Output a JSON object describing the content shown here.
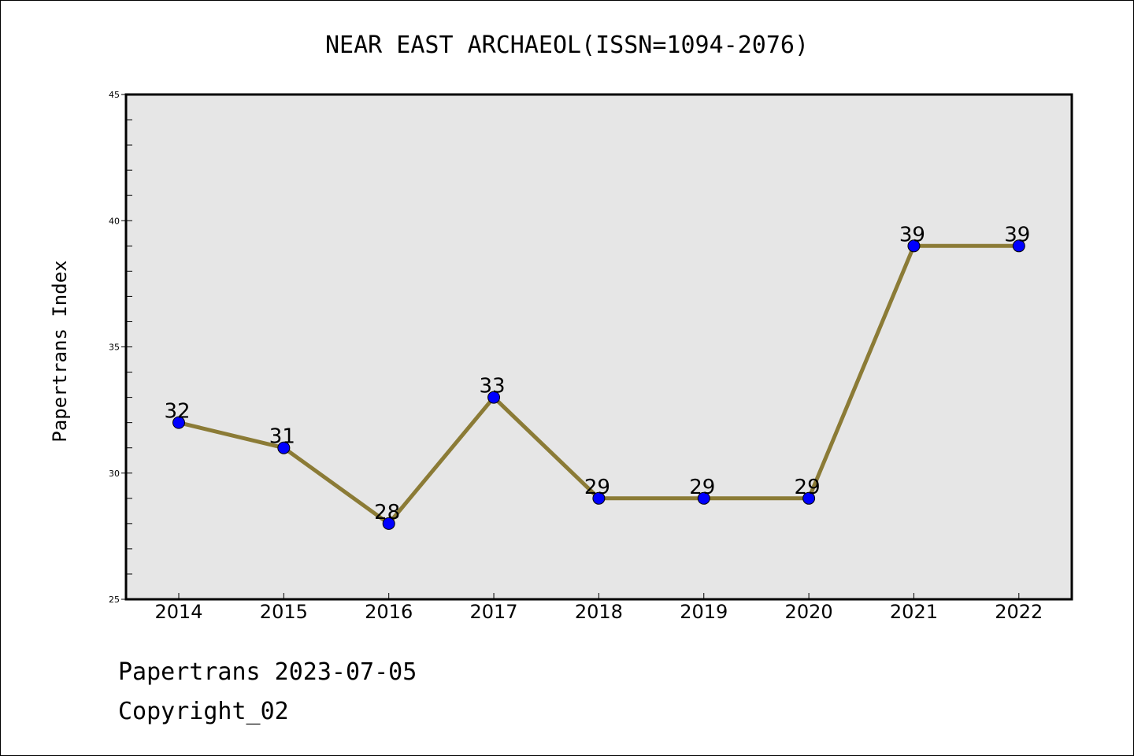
{
  "chart_data": {
    "type": "line",
    "title": "NEAR EAST ARCHAEOL(ISSN=1094-2076)",
    "xlabel": "",
    "ylabel": "Papertrans Index",
    "categories": [
      "2014",
      "2015",
      "2016",
      "2017",
      "2018",
      "2019",
      "2020",
      "2021",
      "2022"
    ],
    "series": [
      {
        "values": [
          32,
          31,
          28,
          33,
          29,
          29,
          29,
          39,
          39
        ]
      }
    ],
    "data_labels": [
      "32",
      "31",
      "28",
      "33",
      "29",
      "29",
      "29",
      "39",
      "39"
    ],
    "ylim": [
      25,
      45
    ],
    "y_ticks": [
      "25",
      "30",
      "35",
      "40",
      "45"
    ],
    "grid": false,
    "legend": "none",
    "colors": {
      "line": "#8B7B36",
      "marker": "#0000FF",
      "plot_background": "#E6E6E6"
    }
  },
  "footer": {
    "date_line": "Papertrans 2023-07-05",
    "copyright_line": "Copyright_02"
  }
}
